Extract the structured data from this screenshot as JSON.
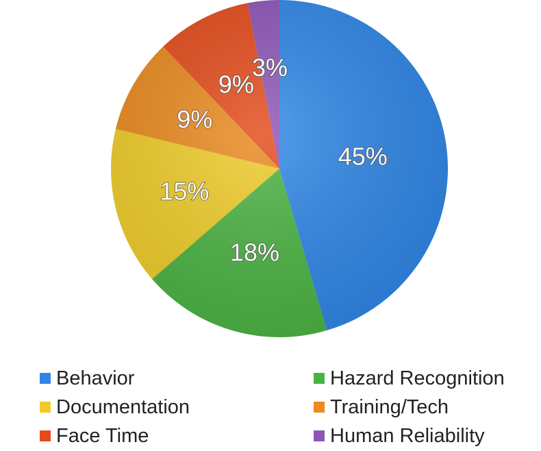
{
  "chart_data": {
    "type": "pie",
    "categories": [
      "Behavior",
      "Hazard Recognition",
      "Documentation",
      "Training/Tech",
      "Face Time",
      "Human Reliability"
    ],
    "values": [
      45,
      18,
      15,
      9,
      9,
      3
    ],
    "data_labels": [
      "45%",
      "18%",
      "15%",
      "9%",
      "9%",
      "3%"
    ],
    "colors": [
      "#2f86e6",
      "#4bb343",
      "#efcc2a",
      "#ea8a1f",
      "#e44b1b",
      "#8e55b6"
    ],
    "start_angle_deg": 0,
    "direction": "clockwise",
    "legend_position": "bottom"
  }
}
